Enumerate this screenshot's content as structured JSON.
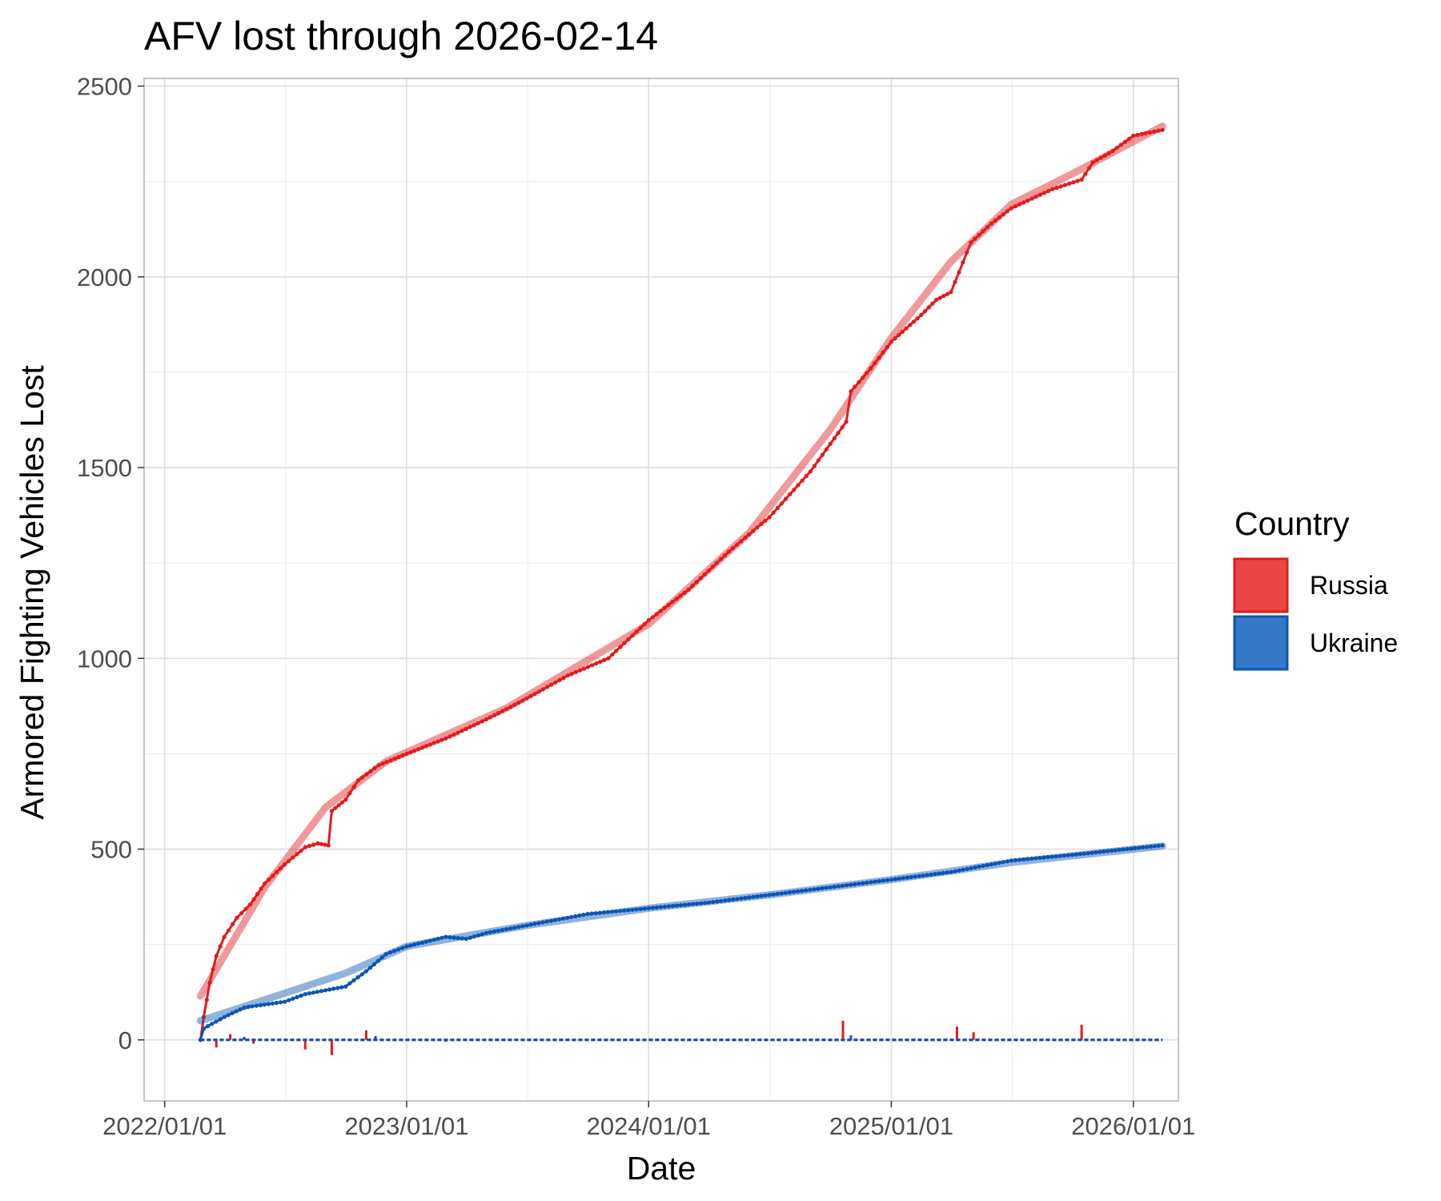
{
  "chart_data": {
    "type": "line",
    "title": "AFV lost through 2026-02-14",
    "xlabel": "Date",
    "ylabel": "Armored Fighting Vehicles Lost",
    "x_ticks": [
      "2022/01/01",
      "2023/01/01",
      "2024/01/01",
      "2025/01/01",
      "2026/01/01"
    ],
    "y_ticks": [
      0,
      500,
      1000,
      1500,
      2000,
      2500
    ],
    "xlim": [
      "2021-12-01",
      "2026-03-10"
    ],
    "ylim": [
      -160,
      2520
    ],
    "grid": true,
    "legend": {
      "title": "Country",
      "position": "right",
      "entries": [
        {
          "name": "Russia",
          "color": "#e41a1c",
          "fill": "#ea4648"
        },
        {
          "name": "Ukraine",
          "color": "#0a56b5",
          "fill": "#3478c6"
        }
      ]
    },
    "series": [
      {
        "name": "Russia",
        "color": "#e41a1c",
        "kind": "cumulative",
        "points": [
          [
            "2022-02-24",
            0
          ],
          [
            "2022-03-01",
            60
          ],
          [
            "2022-03-10",
            150
          ],
          [
            "2022-03-20",
            220
          ],
          [
            "2022-04-01",
            270
          ],
          [
            "2022-04-20",
            320
          ],
          [
            "2022-05-10",
            355
          ],
          [
            "2022-06-01",
            410
          ],
          [
            "2022-07-01",
            460
          ],
          [
            "2022-08-01",
            505
          ],
          [
            "2022-08-20",
            515
          ],
          [
            "2022-09-05",
            510
          ],
          [
            "2022-09-10",
            600
          ],
          [
            "2022-10-01",
            630
          ],
          [
            "2022-10-20",
            680
          ],
          [
            "2022-11-20",
            720
          ],
          [
            "2023-01-01",
            750
          ],
          [
            "2023-03-01",
            790
          ],
          [
            "2023-05-01",
            840
          ],
          [
            "2023-07-01",
            895
          ],
          [
            "2023-09-01",
            955
          ],
          [
            "2023-11-01",
            1000
          ],
          [
            "2024-01-01",
            1100
          ],
          [
            "2024-03-01",
            1180
          ],
          [
            "2024-05-01",
            1280
          ],
          [
            "2024-07-01",
            1370
          ],
          [
            "2024-09-01",
            1490
          ],
          [
            "2024-10-25",
            1620
          ],
          [
            "2024-11-01",
            1700
          ],
          [
            "2024-12-01",
            1760
          ],
          [
            "2025-01-01",
            1830
          ],
          [
            "2025-02-15",
            1900
          ],
          [
            "2025-03-10",
            1940
          ],
          [
            "2025-04-01",
            1960
          ],
          [
            "2025-05-01",
            2090
          ],
          [
            "2025-06-01",
            2140
          ],
          [
            "2025-07-01",
            2180
          ],
          [
            "2025-09-01",
            2230
          ],
          [
            "2025-10-15",
            2255
          ],
          [
            "2025-11-01",
            2300
          ],
          [
            "2025-12-01",
            2330
          ],
          [
            "2026-01-01",
            2370
          ],
          [
            "2026-02-14",
            2385
          ]
        ],
        "trend": [
          [
            "2022-02-24",
            115
          ],
          [
            "2022-06-01",
            400
          ],
          [
            "2022-09-01",
            610
          ],
          [
            "2022-12-01",
            730
          ],
          [
            "2023-06-01",
            870
          ],
          [
            "2024-01-01",
            1090
          ],
          [
            "2024-06-01",
            1330
          ],
          [
            "2024-10-01",
            1600
          ],
          [
            "2025-01-01",
            1840
          ],
          [
            "2025-04-01",
            2040
          ],
          [
            "2025-07-01",
            2190
          ],
          [
            "2025-10-01",
            2270
          ],
          [
            "2026-02-14",
            2395
          ]
        ]
      },
      {
        "name": "Ukraine",
        "color": "#0a56b5",
        "kind": "cumulative",
        "points": [
          [
            "2022-02-24",
            0
          ],
          [
            "2022-03-01",
            30
          ],
          [
            "2022-04-01",
            60
          ],
          [
            "2022-05-01",
            85
          ],
          [
            "2022-07-01",
            100
          ],
          [
            "2022-08-01",
            120
          ],
          [
            "2022-10-01",
            140
          ],
          [
            "2022-11-01",
            180
          ],
          [
            "2022-12-01",
            225
          ],
          [
            "2023-01-01",
            245
          ],
          [
            "2023-03-01",
            270
          ],
          [
            "2023-04-01",
            265
          ],
          [
            "2023-05-01",
            280
          ],
          [
            "2023-07-01",
            300
          ],
          [
            "2023-10-01",
            330
          ],
          [
            "2024-01-01",
            345
          ],
          [
            "2024-04-01",
            360
          ],
          [
            "2024-07-01",
            380
          ],
          [
            "2024-10-01",
            400
          ],
          [
            "2025-01-01",
            420
          ],
          [
            "2025-04-01",
            440
          ],
          [
            "2025-07-01",
            470
          ],
          [
            "2025-10-01",
            485
          ],
          [
            "2026-02-14",
            510
          ]
        ],
        "trend": [
          [
            "2022-02-24",
            50
          ],
          [
            "2022-06-01",
            105
          ],
          [
            "2022-10-01",
            175
          ],
          [
            "2023-01-01",
            245
          ],
          [
            "2023-07-01",
            300
          ],
          [
            "2024-01-01",
            345
          ],
          [
            "2024-07-01",
            380
          ],
          [
            "2025-01-01",
            420
          ],
          [
            "2025-07-01",
            465
          ],
          [
            "2026-02-14",
            508
          ]
        ]
      },
      {
        "name": "Russia daily",
        "color": "#e41a1c",
        "kind": "daily",
        "start": "2022-02-24",
        "end": "2026-02-14",
        "spikes": [
          [
            "2022-03-20",
            -20
          ],
          [
            "2022-04-10",
            15
          ],
          [
            "2022-05-15",
            -10
          ],
          [
            "2022-08-01",
            -25
          ],
          [
            "2022-09-10",
            -40
          ],
          [
            "2022-11-01",
            25
          ],
          [
            "2024-10-20",
            50
          ],
          [
            "2025-04-10",
            35
          ],
          [
            "2025-05-05",
            20
          ],
          [
            "2025-10-15",
            40
          ]
        ]
      },
      {
        "name": "Ukraine daily",
        "color": "#0a56b5",
        "kind": "daily",
        "start": "2022-02-24",
        "end": "2026-02-14",
        "spikes": [
          [
            "2022-05-01",
            8
          ],
          [
            "2022-11-15",
            10
          ],
          [
            "2023-03-01",
            -5
          ],
          [
            "2024-11-01",
            12
          ]
        ]
      }
    ]
  }
}
